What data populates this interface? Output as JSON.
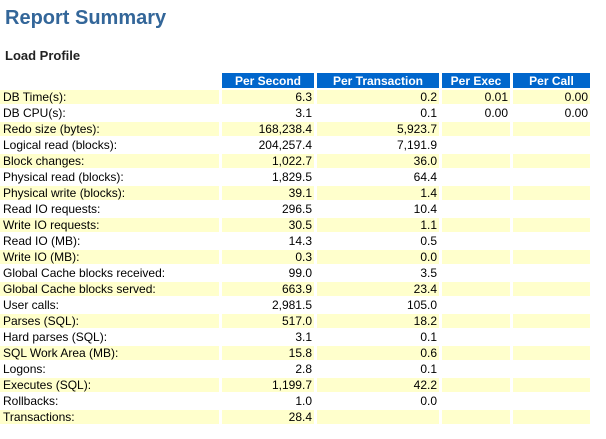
{
  "page": {
    "title": "Report Summary",
    "section_title": "Load Profile"
  },
  "colors": {
    "header_bg": "#0066CC",
    "header_text": "#FFFFFF",
    "row_alt_bg": "#FFFFCC",
    "title_color": "#336699",
    "section_color": "#222222"
  },
  "table": {
    "columns": [
      "Per Second",
      "Per Transaction",
      "Per Exec",
      "Per Call"
    ],
    "rows": [
      {
        "label": "DB Time(s):",
        "values": [
          "6.3",
          "0.2",
          "0.01",
          "0.00"
        ]
      },
      {
        "label": "DB CPU(s):",
        "values": [
          "3.1",
          "0.1",
          "0.00",
          "0.00"
        ]
      },
      {
        "label": "Redo size (bytes):",
        "values": [
          "168,238.4",
          "5,923.7",
          "",
          ""
        ]
      },
      {
        "label": "Logical read (blocks):",
        "values": [
          "204,257.4",
          "7,191.9",
          "",
          ""
        ]
      },
      {
        "label": "Block changes:",
        "values": [
          "1,022.7",
          "36.0",
          "",
          ""
        ]
      },
      {
        "label": "Physical read (blocks):",
        "values": [
          "1,829.5",
          "64.4",
          "",
          ""
        ]
      },
      {
        "label": "Physical write (blocks):",
        "values": [
          "39.1",
          "1.4",
          "",
          ""
        ]
      },
      {
        "label": "Read IO requests:",
        "values": [
          "296.5",
          "10.4",
          "",
          ""
        ]
      },
      {
        "label": "Write IO requests:",
        "values": [
          "30.5",
          "1.1",
          "",
          ""
        ]
      },
      {
        "label": "Read IO (MB):",
        "values": [
          "14.3",
          "0.5",
          "",
          ""
        ]
      },
      {
        "label": "Write IO (MB):",
        "values": [
          "0.3",
          "0.0",
          "",
          ""
        ]
      },
      {
        "label": "Global Cache blocks received:",
        "values": [
          "99.0",
          "3.5",
          "",
          ""
        ]
      },
      {
        "label": "Global Cache blocks served:",
        "values": [
          "663.9",
          "23.4",
          "",
          ""
        ]
      },
      {
        "label": "User calls:",
        "values": [
          "2,981.5",
          "105.0",
          "",
          ""
        ]
      },
      {
        "label": "Parses (SQL):",
        "values": [
          "517.0",
          "18.2",
          "",
          ""
        ]
      },
      {
        "label": "Hard parses (SQL):",
        "values": [
          "3.1",
          "0.1",
          "",
          ""
        ]
      },
      {
        "label": "SQL Work Area (MB):",
        "values": [
          "15.8",
          "0.6",
          "",
          ""
        ]
      },
      {
        "label": "Logons:",
        "values": [
          "2.8",
          "0.1",
          "",
          ""
        ]
      },
      {
        "label": "Executes (SQL):",
        "values": [
          "1,199.7",
          "42.2",
          "",
          ""
        ]
      },
      {
        "label": "Rollbacks:",
        "values": [
          "1.0",
          "0.0",
          "",
          ""
        ]
      },
      {
        "label": "Transactions:",
        "values": [
          "28.4",
          "",
          "",
          ""
        ]
      }
    ]
  }
}
